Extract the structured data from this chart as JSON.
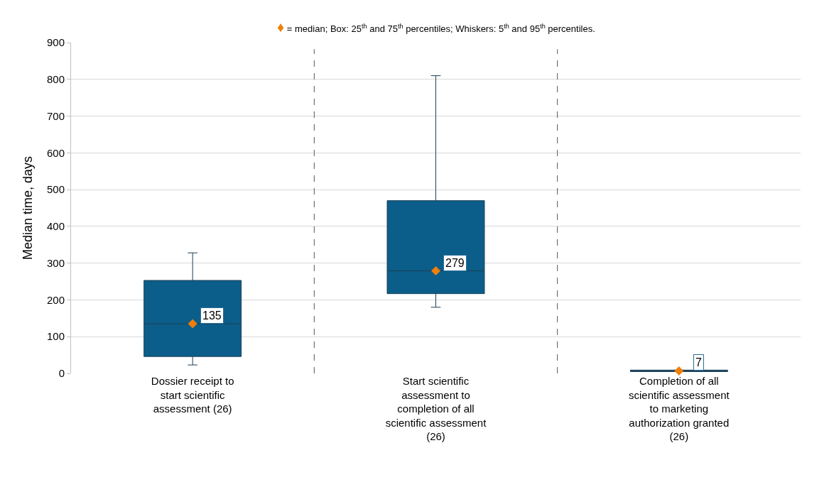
{
  "chart_data": {
    "type": "box",
    "ylabel": "Median time, days",
    "categories": [
      "Dossier receipt to start scientific assessment (26)",
      "Start scientific assessment to completion of all scientific assessment (26)",
      "Completion of all scientific assessment to marketing authorization granted (26)"
    ],
    "series": [
      {
        "color": "#0b5e8a",
        "boxes": [
          {
            "low": 23,
            "q1": 46,
            "median": 135,
            "q3": 253,
            "high": 328
          },
          {
            "low": 180,
            "q1": 217,
            "median": 279,
            "q3": 470,
            "high": 810
          },
          {
            "low": 5,
            "q1": 5,
            "median": 7,
            "q3": 9,
            "high": 9
          }
        ]
      },
      {
        "type": "scatter",
        "color": "#f07f09",
        "marker": "diamond",
        "values": [
          135,
          279,
          7
        ]
      }
    ],
    "annotations": [
      "♦ = median; Box: 25$^{th}$ and 75$^{th}$ percentiles; Whiskers: 5$^{th}$ and 95$^{th}$ percentiles."
    ],
    "data_labels": true,
    "ylim": [
      0,
      900
    ],
    "yticks": [
      0,
      100,
      200,
      300,
      400,
      500,
      600,
      700,
      800,
      900
    ],
    "grid": "y"
  }
}
